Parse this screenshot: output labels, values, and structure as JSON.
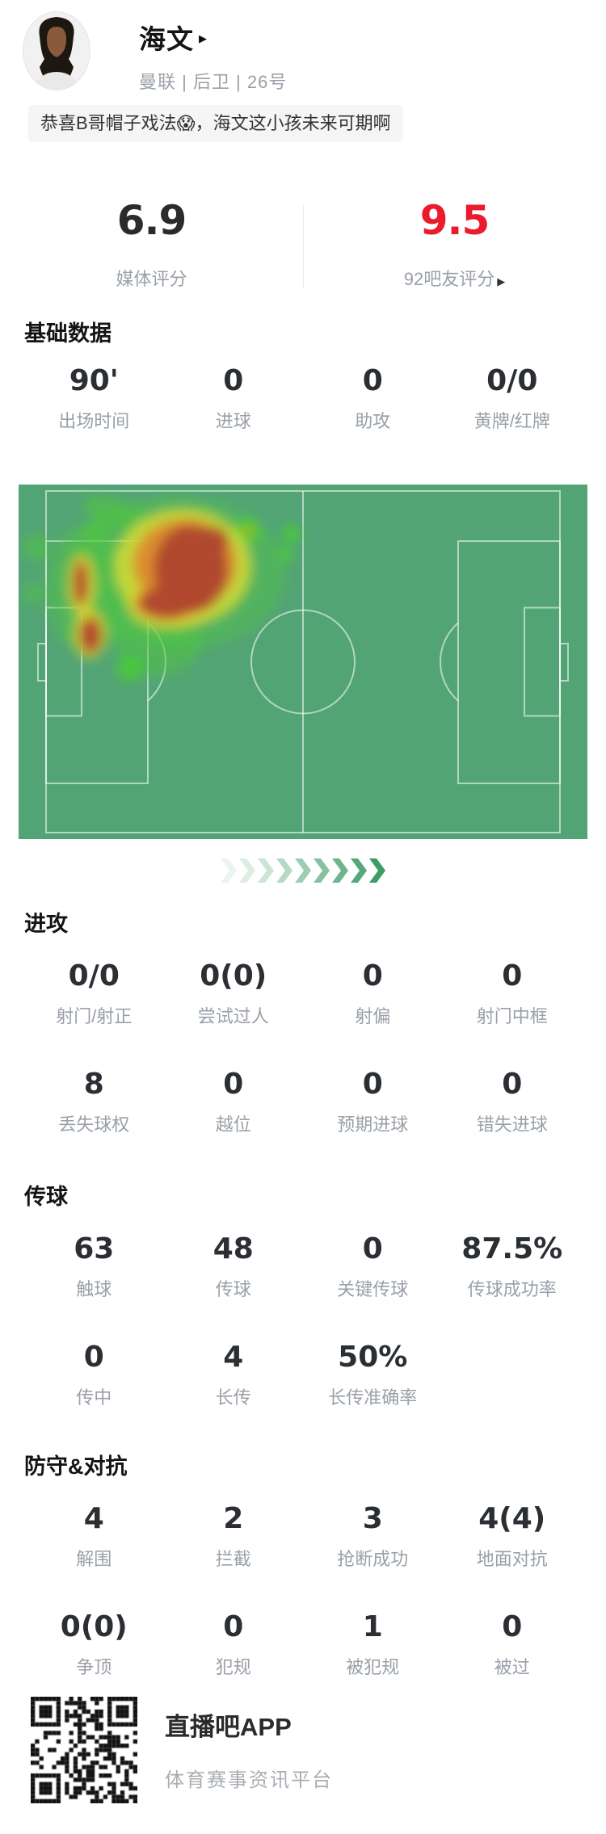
{
  "header": {
    "name": "海文",
    "name_arrow": "▶",
    "meta": "曼联 | 后卫 | 26号"
  },
  "comment": {
    "text": "恭喜B哥帽子戏法😱，海文这小孩未来可期啊"
  },
  "ratings": {
    "media": {
      "value": "6.9",
      "label": "媒体评分"
    },
    "fans": {
      "value": "9.5",
      "label": "92吧友评分",
      "arrow": "▶"
    }
  },
  "stat_sections": [
    {
      "title": "基础数据",
      "rows": [
        [
          {
            "value": "90'",
            "label": "出场时间"
          },
          {
            "value": "0",
            "label": "进球"
          },
          {
            "value": "0",
            "label": "助攻"
          },
          {
            "value": "0/0",
            "label": "黄牌/红牌"
          }
        ]
      ]
    },
    {
      "title": "进攻",
      "rows": [
        [
          {
            "value": "0/0",
            "label": "射门/射正"
          },
          {
            "value": "0(0)",
            "label": "尝试过人"
          },
          {
            "value": "0",
            "label": "射偏"
          },
          {
            "value": "0",
            "label": "射门中框"
          }
        ],
        [
          {
            "value": "8",
            "label": "丢失球权"
          },
          {
            "value": "0",
            "label": "越位"
          },
          {
            "value": "0",
            "label": "预期进球"
          },
          {
            "value": "0",
            "label": "错失进球"
          }
        ]
      ]
    },
    {
      "title": "传球",
      "rows": [
        [
          {
            "value": "63",
            "label": "触球"
          },
          {
            "value": "48",
            "label": "传球"
          },
          {
            "value": "0",
            "label": "关键传球"
          },
          {
            "value": "87.5%",
            "label": "传球成功率"
          }
        ],
        [
          {
            "value": "0",
            "label": "传中"
          },
          {
            "value": "4",
            "label": "长传"
          },
          {
            "value": "50%",
            "label": "长传准确率"
          }
        ]
      ]
    },
    {
      "title": "防守&对抗",
      "rows": [
        [
          {
            "value": "4",
            "label": "解围"
          },
          {
            "value": "2",
            "label": "拦截"
          },
          {
            "value": "3",
            "label": "抢断成功"
          },
          {
            "value": "4(4)",
            "label": "地面对抗"
          }
        ],
        [
          {
            "value": "0(0)",
            "label": "争顶"
          },
          {
            "value": "0",
            "label": "犯规"
          },
          {
            "value": "1",
            "label": "被犯规"
          },
          {
            "value": "0",
            "label": "被过"
          }
        ]
      ]
    }
  ],
  "colors": {
    "accent_red": "#ea1b2d",
    "pitch_green": "#53a475",
    "chevron_green": "#3c9c66"
  },
  "footer": {
    "app_name": "直播吧APP",
    "tagline": "体育赛事资讯平台"
  }
}
